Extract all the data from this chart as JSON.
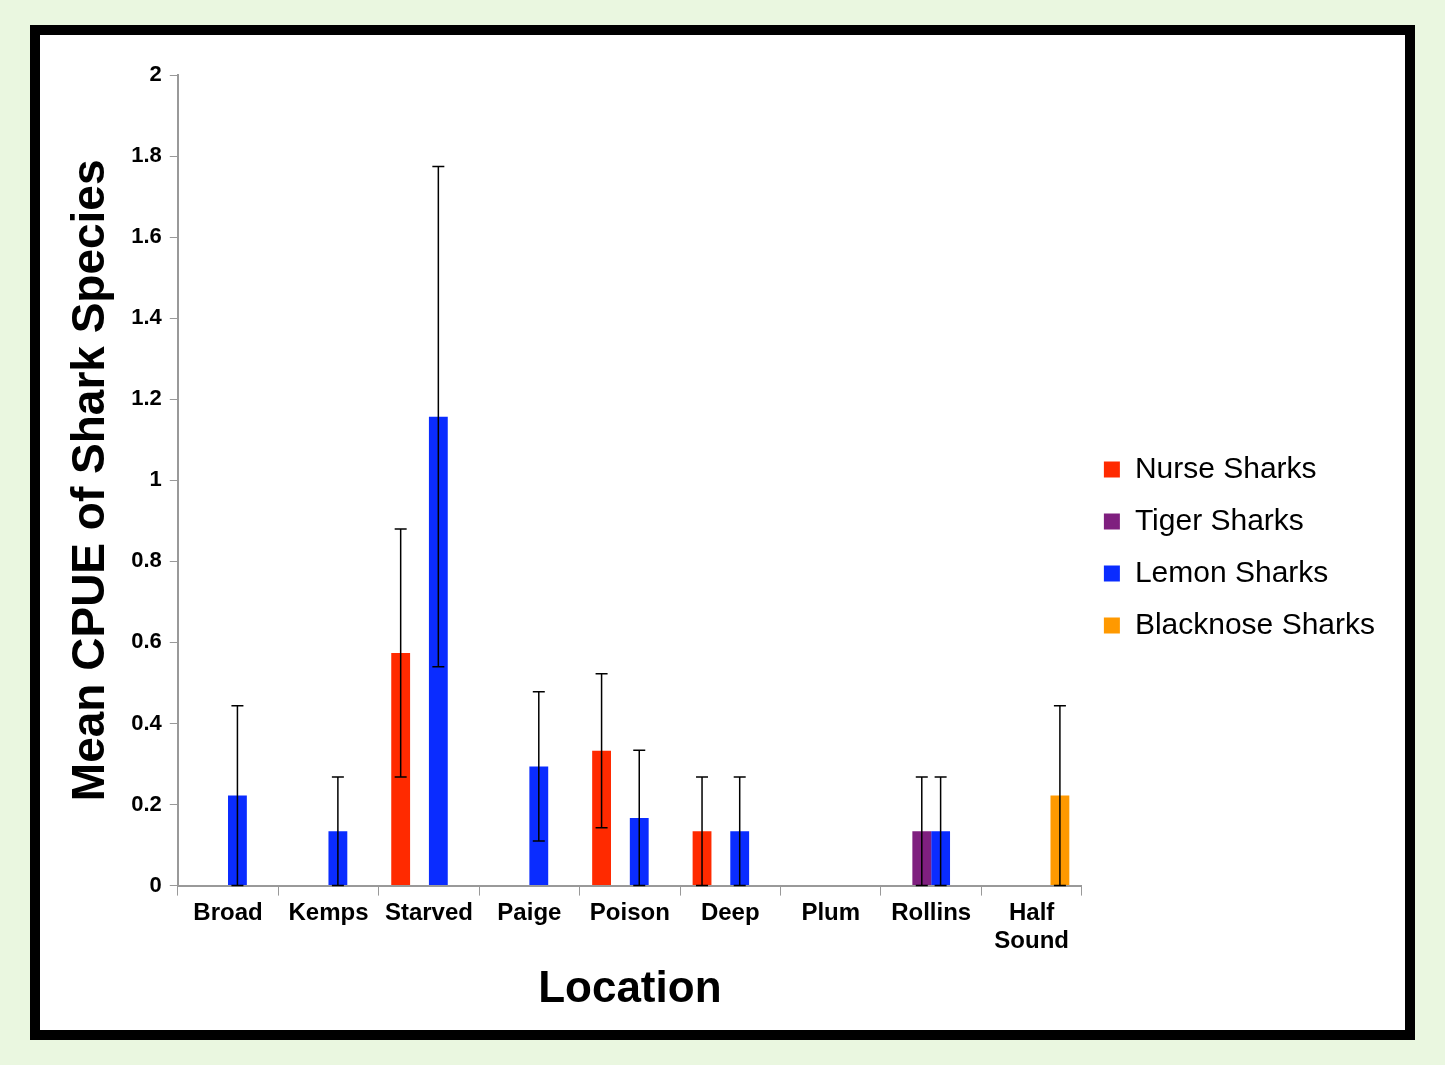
{
  "chart_data": {
    "type": "bar",
    "xlabel": "Location",
    "ylabel": "Mean CPUE of Shark Species",
    "categories": [
      "Broad",
      "Kemps",
      "Starved",
      "Paige",
      "Poison",
      "Deep",
      "Plum",
      "Rollins",
      "Half Sound"
    ],
    "series": [
      {
        "name": "Nurse Sharks",
        "color": "#ff2a00",
        "values": [
          0,
          0,
          0.574,
          0,
          0.333,
          0.134,
          0,
          0,
          0
        ],
        "errors": [
          null,
          null,
          0.306,
          null,
          0.19,
          0.134,
          null,
          null,
          null
        ]
      },
      {
        "name": "Tiger Sharks",
        "color": "#7f1f7f",
        "values": [
          0,
          0,
          0,
          0,
          0,
          0,
          0,
          0.134,
          0
        ],
        "errors": [
          null,
          null,
          null,
          null,
          null,
          null,
          null,
          0.134,
          null
        ]
      },
      {
        "name": "Lemon Sharks",
        "color": "#0a2cff",
        "values": [
          0.222,
          0.134,
          1.157,
          0.294,
          0.167,
          0.134,
          0,
          0.134,
          0
        ],
        "errors": [
          0.222,
          0.134,
          0.617,
          0.184,
          0.167,
          0.134,
          null,
          0.134,
          null
        ]
      },
      {
        "name": "Blacknose Sharks",
        "color": "#ff9900",
        "values": [
          0,
          0,
          0,
          0,
          0,
          0,
          0,
          0,
          0.222
        ],
        "errors": [
          null,
          null,
          null,
          null,
          null,
          null,
          null,
          null,
          0.222
        ]
      }
    ],
    "ylim": [
      0,
      2
    ],
    "yticks": [
      0,
      0.2,
      0.4,
      0.6,
      0.8,
      1,
      1.2,
      1.4,
      1.6,
      1.8,
      2
    ],
    "grid": false,
    "legend": "right"
  }
}
